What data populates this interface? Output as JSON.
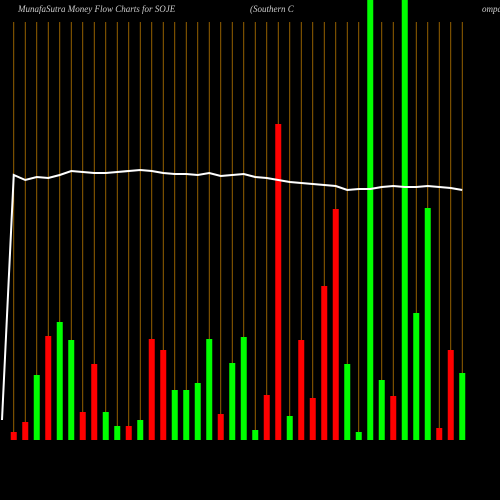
{
  "chart_data": {
    "type": "bar",
    "title": "MunafaSutra  Money Flow  Charts for SOJE",
    "subtitle": "(Southern  C",
    "subtitle_tail": "ompa",
    "ylim": [
      0,
      440
    ],
    "values": [
      8,
      18,
      65,
      104,
      118,
      100,
      28,
      76,
      28,
      14,
      14,
      20,
      101,
      90,
      50,
      50,
      57,
      101,
      26,
      77,
      103,
      10,
      45,
      316,
      24,
      100,
      42,
      154,
      231,
      76,
      8,
      460,
      60,
      44,
      460,
      127,
      232,
      12,
      90,
      67
    ],
    "colors": [
      "red",
      "red",
      "green",
      "red",
      "green",
      "green",
      "red",
      "red",
      "green",
      "green",
      "red",
      "green",
      "red",
      "red",
      "green",
      "green",
      "green",
      "green",
      "red",
      "green",
      "green",
      "green",
      "red",
      "red",
      "green",
      "red",
      "red",
      "red",
      "red",
      "green",
      "green",
      "green",
      "green",
      "red",
      "green",
      "green",
      "green",
      "red",
      "red",
      "green"
    ],
    "line_start": 20,
    "line": [
      265,
      260,
      263,
      262,
      265,
      269,
      268,
      267,
      267,
      268,
      269,
      270,
      269,
      267,
      266,
      266,
      265,
      267,
      264,
      265,
      266,
      263,
      262,
      260,
      258,
      257,
      256,
      255,
      254,
      250,
      251,
      251,
      253,
      254,
      253,
      253,
      254,
      253,
      252,
      250
    ],
    "palette": {
      "red": "#ff0000",
      "green": "#00ff00",
      "grid": "#b87800",
      "line": "#ffffff"
    }
  }
}
